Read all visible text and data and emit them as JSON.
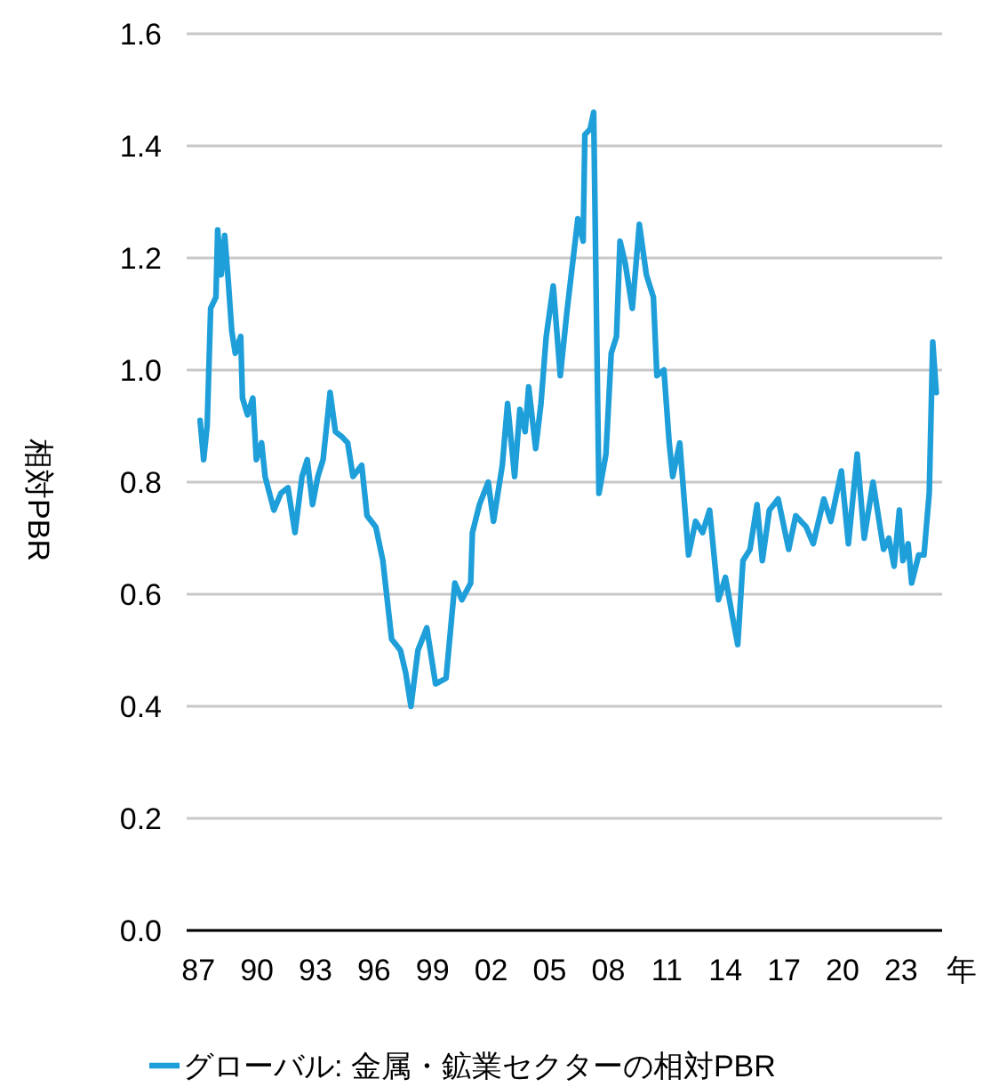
{
  "chart_data": {
    "type": "line",
    "ylabel": "相対PBR",
    "xlabel": "年",
    "xlim": [
      1986.4,
      2025.1
    ],
    "ylim": [
      0,
      1.6
    ],
    "yticks": [
      {
        "value": 0,
        "label": "0.0"
      },
      0.2,
      0.4,
      0.6,
      0.8,
      {
        "value": 1,
        "label": "1.0"
      },
      1.2,
      1.4,
      1.6
    ],
    "xticks": [
      {
        "value": 1987,
        "label": "87"
      },
      {
        "value": 1990,
        "label": "90"
      },
      {
        "value": 1993,
        "label": "93"
      },
      {
        "value": 1996,
        "label": "96"
      },
      {
        "value": 1999,
        "label": "99"
      },
      {
        "value": 2002,
        "label": "02"
      },
      {
        "value": 2005,
        "label": "05"
      },
      {
        "value": 2008,
        "label": "08"
      },
      {
        "value": 2011,
        "label": "11"
      },
      {
        "value": 2014,
        "label": "14"
      },
      {
        "value": 2017,
        "label": "17"
      },
      {
        "value": 2020,
        "label": "20"
      },
      {
        "value": 2023,
        "label": "23"
      }
    ],
    "grid": "y",
    "legend": "bottom",
    "marker": "none",
    "line_style": "solid",
    "series": [
      {
        "name": "グローバル: 金属・鉱業セクターの相対PBR",
        "color": "#1f9fd9",
        "x": [
          1987.09,
          1987.27,
          1987.45,
          1987.63,
          1987.9,
          1987.99,
          1988.17,
          1988.35,
          1988.53,
          1988.71,
          1988.89,
          1989.17,
          1989.26,
          1989.52,
          1989.79,
          1989.97,
          1990.24,
          1990.42,
          1990.87,
          1991.23,
          1991.59,
          1991.95,
          1992.31,
          1992.58,
          1992.85,
          1993.12,
          1993.39,
          1993.75,
          1994.02,
          1994.38,
          1994.65,
          1994.92,
          1995.37,
          1995.64,
          1996.09,
          1996.45,
          1996.9,
          1997.35,
          1997.62,
          1997.89,
          1998.25,
          1998.7,
          1999.15,
          1999.69,
          2000.14,
          2000.5,
          2000.95,
          2001.04,
          2001.4,
          2001.85,
          2002.12,
          2002.57,
          2002.84,
          2003.2,
          2003.47,
          2003.74,
          2003.92,
          2004.28,
          2004.55,
          2004.82,
          2005.18,
          2005.54,
          2005.9,
          2006.44,
          2006.71,
          2006.8,
          2007.07,
          2007.25,
          2007.52,
          2007.88,
          2008.15,
          2008.42,
          2008.6,
          2008.87,
          2009.23,
          2009.59,
          2009.95,
          2010.31,
          2010.49,
          2010.85,
          2011.12,
          2011.3,
          2011.66,
          2012.11,
          2012.47,
          2012.83,
          2013.19,
          2013.64,
          2014.0,
          2014.36,
          2014.63,
          2014.9,
          2015.26,
          2015.62,
          2015.89,
          2016.25,
          2016.7,
          2017.24,
          2017.6,
          2018.14,
          2018.5,
          2019.04,
          2019.4,
          2019.94,
          2020.3,
          2020.75,
          2021.11,
          2021.56,
          2022.1,
          2022.37,
          2022.64,
          2022.91,
          2023.09,
          2023.36,
          2023.54,
          2023.9,
          2024.17,
          2024.44,
          2024.62,
          2024.8
        ],
        "values": [
          0.91,
          0.84,
          0.9,
          1.11,
          1.13,
          1.25,
          1.17,
          1.24,
          1.16,
          1.07,
          1.03,
          1.06,
          0.95,
          0.92,
          0.95,
          0.84,
          0.87,
          0.81,
          0.75,
          0.78,
          0.79,
          0.71,
          0.81,
          0.84,
          0.76,
          0.81,
          0.84,
          0.96,
          0.89,
          0.88,
          0.87,
          0.81,
          0.83,
          0.74,
          0.72,
          0.66,
          0.52,
          0.5,
          0.46,
          0.4,
          0.5,
          0.54,
          0.44,
          0.45,
          0.62,
          0.59,
          0.62,
          0.71,
          0.76,
          0.8,
          0.73,
          0.83,
          0.94,
          0.81,
          0.93,
          0.89,
          0.97,
          0.86,
          0.94,
          1.06,
          1.15,
          0.99,
          1.11,
          1.27,
          1.23,
          1.42,
          1.43,
          1.46,
          0.78,
          0.85,
          1.03,
          1.06,
          1.23,
          1.19,
          1.11,
          1.26,
          1.17,
          1.13,
          0.99,
          1.0,
          0.87,
          0.81,
          0.87,
          0.67,
          0.73,
          0.71,
          0.75,
          0.59,
          0.63,
          0.56,
          0.51,
          0.66,
          0.68,
          0.76,
          0.66,
          0.75,
          0.77,
          0.68,
          0.74,
          0.72,
          0.69,
          0.77,
          0.73,
          0.82,
          0.69,
          0.85,
          0.7,
          0.8,
          0.68,
          0.7,
          0.65,
          0.75,
          0.66,
          0.69,
          0.62,
          0.67,
          0.67,
          0.78,
          1.05,
          0.96
        ]
      }
    ]
  }
}
